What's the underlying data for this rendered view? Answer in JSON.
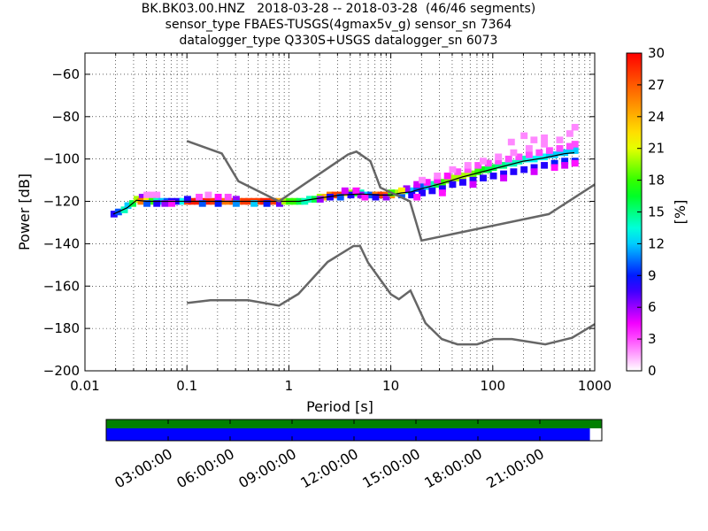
{
  "title": {
    "line1": "BK.BK03.00.HNZ   2018-03-28 -- 2018-03-28  (46/46 segments)",
    "line2": "sensor_type FBAES-TUSGS(4gmax5v_g) sensor_sn 7364",
    "line3": "datalogger_type Q330S+USGS datalogger_sn 6073"
  },
  "chart_data": {
    "type": "heatmap",
    "xlabel": "Period [s]",
    "ylabel": "Power [dB]",
    "xscale": "log",
    "xlim": [
      0.01,
      1000
    ],
    "ylim": [
      -200,
      -50
    ],
    "xticks": [
      "0.01",
      "0.1",
      "1",
      "10",
      "100",
      "1000"
    ],
    "yticks": [
      "−200",
      "−180",
      "−160",
      "−140",
      "−120",
      "−100",
      "−80",
      "−60"
    ],
    "grid": true,
    "colorbar": {
      "label": "[%]",
      "range": [
        0,
        30
      ],
      "ticks": [
        "0",
        "3",
        "6",
        "9",
        "12",
        "15",
        "18",
        "21",
        "24",
        "27",
        "30"
      ],
      "colormap": [
        "#ffffff",
        "#ff00ff",
        "#0000ff",
        "#00ffff",
        "#00ff00",
        "#ffff00",
        "#ff8000",
        "#ff0000"
      ]
    },
    "noise_models": [
      {
        "name": "NHNM",
        "points": [
          [
            0.1,
            -91.5
          ],
          [
            0.22,
            -97.4
          ],
          [
            0.32,
            -110.5
          ],
          [
            0.8,
            -120
          ],
          [
            3.8,
            -97.9
          ],
          [
            4.6,
            -96.5
          ],
          [
            6.3,
            -101
          ],
          [
            7.9,
            -113.5
          ],
          [
            15.4,
            -120
          ],
          [
            20,
            -138.5
          ],
          [
            354.8,
            -126
          ],
          [
            1000,
            -112
          ]
        ]
      },
      {
        "name": "NLNM",
        "points": [
          [
            0.1,
            -168
          ],
          [
            0.17,
            -166.7
          ],
          [
            0.4,
            -166.7
          ],
          [
            0.8,
            -169.2
          ],
          [
            1.24,
            -163.7
          ],
          [
            2.4,
            -148.6
          ],
          [
            4.3,
            -141.1
          ],
          [
            5,
            -141.1
          ],
          [
            6,
            -149
          ],
          [
            10,
            -163.8
          ],
          [
            12,
            -166.2
          ],
          [
            15.6,
            -162.1
          ],
          [
            21.9,
            -177.5
          ],
          [
            31.6,
            -185
          ],
          [
            45,
            -187.5
          ],
          [
            70,
            -187.5
          ],
          [
            101,
            -185
          ],
          [
            154,
            -185
          ],
          [
            328,
            -187.5
          ],
          [
            600,
            -184.4
          ],
          [
            1000,
            -178
          ]
        ]
      }
    ],
    "density_cells": [
      {
        "x": 0.019,
        "y": -126,
        "pct": 8
      },
      {
        "x": 0.021,
        "y": -125,
        "pct": 10
      },
      {
        "x": 0.024,
        "y": -124,
        "pct": 14
      },
      {
        "x": 0.026,
        "y": -122,
        "pct": 12
      },
      {
        "x": 0.029,
        "y": -121,
        "pct": 16
      },
      {
        "x": 0.032,
        "y": -119,
        "pct": 20
      },
      {
        "x": 0.036,
        "y": -118,
        "pct": 6
      },
      {
        "x": 0.04,
        "y": -117,
        "pct": 2
      },
      {
        "x": 0.045,
        "y": -117,
        "pct": 2
      },
      {
        "x": 0.05,
        "y": -117,
        "pct": 2
      },
      {
        "x": 0.035,
        "y": -120,
        "pct": 26
      },
      {
        "x": 0.04,
        "y": -120,
        "pct": 22
      },
      {
        "x": 0.045,
        "y": -120,
        "pct": 18
      },
      {
        "x": 0.05,
        "y": -120,
        "pct": 14
      },
      {
        "x": 0.056,
        "y": -120,
        "pct": 12
      },
      {
        "x": 0.063,
        "y": -120,
        "pct": 10
      },
      {
        "x": 0.07,
        "y": -120,
        "pct": 8
      },
      {
        "x": 0.08,
        "y": -120,
        "pct": 8
      },
      {
        "x": 0.04,
        "y": -121,
        "pct": 10
      },
      {
        "x": 0.05,
        "y": -121,
        "pct": 8
      },
      {
        "x": 0.06,
        "y": -121,
        "pct": 6
      },
      {
        "x": 0.07,
        "y": -121,
        "pct": 4
      },
      {
        "x": 0.09,
        "y": -120,
        "pct": 13
      },
      {
        "x": 0.1,
        "y": -120,
        "pct": 28
      },
      {
        "x": 0.11,
        "y": -120,
        "pct": 29
      },
      {
        "x": 0.125,
        "y": -120,
        "pct": 29
      },
      {
        "x": 0.14,
        "y": -120,
        "pct": 29
      },
      {
        "x": 0.16,
        "y": -120,
        "pct": 29
      },
      {
        "x": 0.18,
        "y": -120,
        "pct": 28
      },
      {
        "x": 0.2,
        "y": -120,
        "pct": 27
      },
      {
        "x": 0.22,
        "y": -120,
        "pct": 26
      },
      {
        "x": 0.25,
        "y": -120,
        "pct": 26
      },
      {
        "x": 0.28,
        "y": -120,
        "pct": 27
      },
      {
        "x": 0.32,
        "y": -120,
        "pct": 27
      },
      {
        "x": 0.36,
        "y": -120,
        "pct": 28
      },
      {
        "x": 0.4,
        "y": -120,
        "pct": 28
      },
      {
        "x": 0.45,
        "y": -120,
        "pct": 28
      },
      {
        "x": 0.5,
        "y": -120,
        "pct": 28
      },
      {
        "x": 0.56,
        "y": -120,
        "pct": 29
      },
      {
        "x": 0.63,
        "y": -120,
        "pct": 29
      },
      {
        "x": 0.7,
        "y": -120,
        "pct": 28
      },
      {
        "x": 0.8,
        "y": -120,
        "pct": 24
      },
      {
        "x": 0.1,
        "y": -119,
        "pct": 8
      },
      {
        "x": 0.13,
        "y": -118,
        "pct": 3
      },
      {
        "x": 0.16,
        "y": -117,
        "pct": 2
      },
      {
        "x": 0.2,
        "y": -118,
        "pct": 4
      },
      {
        "x": 0.25,
        "y": -118,
        "pct": 3
      },
      {
        "x": 0.3,
        "y": -119,
        "pct": 6
      },
      {
        "x": 0.14,
        "y": -121,
        "pct": 10
      },
      {
        "x": 0.2,
        "y": -121,
        "pct": 9
      },
      {
        "x": 0.3,
        "y": -121,
        "pct": 11
      },
      {
        "x": 0.45,
        "y": -121,
        "pct": 12
      },
      {
        "x": 0.6,
        "y": -121,
        "pct": 9
      },
      {
        "x": 0.8,
        "y": -121,
        "pct": 7
      },
      {
        "x": 0.9,
        "y": -120,
        "pct": 20
      },
      {
        "x": 1.0,
        "y": -120,
        "pct": 18
      },
      {
        "x": 1.12,
        "y": -120,
        "pct": 18
      },
      {
        "x": 1.26,
        "y": -120,
        "pct": 16
      },
      {
        "x": 1.41,
        "y": -120,
        "pct": 14
      },
      {
        "x": 1.58,
        "y": -119,
        "pct": 14
      },
      {
        "x": 1.78,
        "y": -119,
        "pct": 16
      },
      {
        "x": 2.0,
        "y": -118,
        "pct": 20
      },
      {
        "x": 2.24,
        "y": -118,
        "pct": 24
      },
      {
        "x": 2.5,
        "y": -117,
        "pct": 26
      },
      {
        "x": 2.8,
        "y": -117,
        "pct": 28
      },
      {
        "x": 3.16,
        "y": -117,
        "pct": 28
      },
      {
        "x": 3.55,
        "y": -116,
        "pct": 22
      },
      {
        "x": 4.0,
        "y": -116,
        "pct": 20
      },
      {
        "x": 4.47,
        "y": -116,
        "pct": 17
      },
      {
        "x": 5.0,
        "y": -116,
        "pct": 14
      },
      {
        "x": 5.62,
        "y": -117,
        "pct": 12
      },
      {
        "x": 6.3,
        "y": -117,
        "pct": 10
      },
      {
        "x": 2.0,
        "y": -119,
        "pct": 6
      },
      {
        "x": 2.5,
        "y": -118,
        "pct": 8
      },
      {
        "x": 3.16,
        "y": -118,
        "pct": 10
      },
      {
        "x": 4.0,
        "y": -117,
        "pct": 8
      },
      {
        "x": 5.0,
        "y": -117,
        "pct": 6
      },
      {
        "x": 3.5,
        "y": -115,
        "pct": 5
      },
      {
        "x": 4.5,
        "y": -115,
        "pct": 4
      },
      {
        "x": 5.5,
        "y": -118,
        "pct": 4
      },
      {
        "x": 7.0,
        "y": -117,
        "pct": 26
      },
      {
        "x": 7.9,
        "y": -117,
        "pct": 28
      },
      {
        "x": 8.9,
        "y": -117,
        "pct": 27
      },
      {
        "x": 10.0,
        "y": -117,
        "pct": 25
      },
      {
        "x": 7.0,
        "y": -118,
        "pct": 8
      },
      {
        "x": 8.9,
        "y": -118,
        "pct": 6
      },
      {
        "x": 11.2,
        "y": -116,
        "pct": 20
      },
      {
        "x": 12.6,
        "y": -116,
        "pct": 18
      },
      {
        "x": 14.1,
        "y": -115,
        "pct": 14
      },
      {
        "x": 15.8,
        "y": -115,
        "pct": 12
      },
      {
        "x": 17.8,
        "y": -114,
        "pct": 10
      },
      {
        "x": 20.0,
        "y": -113,
        "pct": 10
      },
      {
        "x": 22.4,
        "y": -113,
        "pct": 12
      },
      {
        "x": 25.1,
        "y": -112,
        "pct": 14
      },
      {
        "x": 28.2,
        "y": -112,
        "pct": 16
      },
      {
        "x": 31.6,
        "y": -111,
        "pct": 18
      },
      {
        "x": 35.5,
        "y": -110,
        "pct": 19
      },
      {
        "x": 39.8,
        "y": -109,
        "pct": 20
      },
      {
        "x": 44.7,
        "y": -109,
        "pct": 20
      },
      {
        "x": 50.1,
        "y": -108,
        "pct": 20
      },
      {
        "x": 56.2,
        "y": -107,
        "pct": 20
      },
      {
        "x": 63.1,
        "y": -107,
        "pct": 19
      },
      {
        "x": 70.8,
        "y": -106,
        "pct": 18
      },
      {
        "x": 79.4,
        "y": -105,
        "pct": 17
      },
      {
        "x": 89.1,
        "y": -105,
        "pct": 16
      },
      {
        "x": 100,
        "y": -104,
        "pct": 16
      },
      {
        "x": 112,
        "y": -103,
        "pct": 15
      },
      {
        "x": 126,
        "y": -103,
        "pct": 15
      },
      {
        "x": 141,
        "y": -102,
        "pct": 14
      },
      {
        "x": 158,
        "y": -102,
        "pct": 14
      },
      {
        "x": 178,
        "y": -101,
        "pct": 14
      },
      {
        "x": 200,
        "y": -100,
        "pct": 14
      },
      {
        "x": 224,
        "y": -100,
        "pct": 13
      },
      {
        "x": 251,
        "y": -100,
        "pct": 13
      },
      {
        "x": 282,
        "y": -99,
        "pct": 13
      },
      {
        "x": 316,
        "y": -99,
        "pct": 13
      },
      {
        "x": 355,
        "y": -98,
        "pct": 12
      },
      {
        "x": 398,
        "y": -98,
        "pct": 12
      },
      {
        "x": 447,
        "y": -97,
        "pct": 12
      },
      {
        "x": 501,
        "y": -97,
        "pct": 12
      },
      {
        "x": 562,
        "y": -96,
        "pct": 12
      },
      {
        "x": 631,
        "y": -96,
        "pct": 12
      },
      {
        "x": 12.6,
        "y": -117,
        "pct": 10
      },
      {
        "x": 15.8,
        "y": -117,
        "pct": 8
      },
      {
        "x": 20.0,
        "y": -116,
        "pct": 8
      },
      {
        "x": 25.1,
        "y": -115,
        "pct": 8
      },
      {
        "x": 31.6,
        "y": -114,
        "pct": 8
      },
      {
        "x": 39.8,
        "y": -112,
        "pct": 8
      },
      {
        "x": 50.1,
        "y": -111,
        "pct": 8
      },
      {
        "x": 63.1,
        "y": -110,
        "pct": 8
      },
      {
        "x": 79.4,
        "y": -109,
        "pct": 8
      },
      {
        "x": 100,
        "y": -108,
        "pct": 8
      },
      {
        "x": 126,
        "y": -107,
        "pct": 8
      },
      {
        "x": 158,
        "y": -106,
        "pct": 8
      },
      {
        "x": 200,
        "y": -105,
        "pct": 8
      },
      {
        "x": 251,
        "y": -104,
        "pct": 8
      },
      {
        "x": 316,
        "y": -103,
        "pct": 8
      },
      {
        "x": 398,
        "y": -102,
        "pct": 9
      },
      {
        "x": 501,
        "y": -101,
        "pct": 9
      },
      {
        "x": 631,
        "y": -101,
        "pct": 9
      },
      {
        "x": 14.1,
        "y": -114,
        "pct": 6
      },
      {
        "x": 17.8,
        "y": -112,
        "pct": 5
      },
      {
        "x": 22.4,
        "y": -111,
        "pct": 4
      },
      {
        "x": 28.2,
        "y": -110,
        "pct": 4
      },
      {
        "x": 35.5,
        "y": -108,
        "pct": 4
      },
      {
        "x": 44.7,
        "y": -106,
        "pct": 3
      },
      {
        "x": 56.2,
        "y": -105,
        "pct": 3
      },
      {
        "x": 70.8,
        "y": -103,
        "pct": 3
      },
      {
        "x": 89.1,
        "y": -102,
        "pct": 3
      },
      {
        "x": 112,
        "y": -101,
        "pct": 3
      },
      {
        "x": 141,
        "y": -100,
        "pct": 3
      },
      {
        "x": 178,
        "y": -99,
        "pct": 3
      },
      {
        "x": 224,
        "y": -98,
        "pct": 3
      },
      {
        "x": 282,
        "y": -97,
        "pct": 3
      },
      {
        "x": 355,
        "y": -96,
        "pct": 3
      },
      {
        "x": 447,
        "y": -95,
        "pct": 3
      },
      {
        "x": 562,
        "y": -94,
        "pct": 3
      },
      {
        "x": 631,
        "y": -93,
        "pct": 3
      },
      {
        "x": 20.0,
        "y": -110,
        "pct": 2
      },
      {
        "x": 28.2,
        "y": -108,
        "pct": 2
      },
      {
        "x": 39.8,
        "y": -105,
        "pct": 2
      },
      {
        "x": 56.2,
        "y": -103,
        "pct": 2
      },
      {
        "x": 79.4,
        "y": -101,
        "pct": 2
      },
      {
        "x": 112,
        "y": -99,
        "pct": 2
      },
      {
        "x": 158,
        "y": -97,
        "pct": 2
      },
      {
        "x": 224,
        "y": -95,
        "pct": 2
      },
      {
        "x": 316,
        "y": -93,
        "pct": 2
      },
      {
        "x": 447,
        "y": -91,
        "pct": 2
      },
      {
        "x": 562,
        "y": -88,
        "pct": 2
      },
      {
        "x": 631,
        "y": -85,
        "pct": 2
      },
      {
        "x": 200,
        "y": -89,
        "pct": 2
      },
      {
        "x": 316,
        "y": -90,
        "pct": 2
      },
      {
        "x": 250,
        "y": -91,
        "pct": 2
      },
      {
        "x": 150,
        "y": -92,
        "pct": 2
      },
      {
        "x": 17.8,
        "y": -118,
        "pct": 4
      },
      {
        "x": 31.6,
        "y": -116,
        "pct": 4
      },
      {
        "x": 63.1,
        "y": -112,
        "pct": 5
      },
      {
        "x": 126,
        "y": -109,
        "pct": 5
      },
      {
        "x": 251,
        "y": -106,
        "pct": 5
      },
      {
        "x": 501,
        "y": -103,
        "pct": 5
      },
      {
        "x": 631,
        "y": -102,
        "pct": 4
      },
      {
        "x": 398,
        "y": -104,
        "pct": 4
      },
      {
        "x": 12.6,
        "y": -115,
        "pct": 22
      },
      {
        "x": 10.0,
        "y": -116,
        "pct": 18
      }
    ],
    "mean_curve": [
      [
        0.019,
        -126
      ],
      [
        0.026,
        -123
      ],
      [
        0.032,
        -119.5
      ],
      [
        0.04,
        -120
      ],
      [
        0.1,
        -120
      ],
      [
        0.5,
        -120
      ],
      [
        0.8,
        -120
      ],
      [
        1.26,
        -120
      ],
      [
        2.0,
        -118.5
      ],
      [
        3.16,
        -117
      ],
      [
        5.0,
        -116.5
      ],
      [
        7.9,
        -117
      ],
      [
        10,
        -117
      ],
      [
        12.6,
        -116
      ],
      [
        15.8,
        -115.5
      ],
      [
        20,
        -114
      ],
      [
        31.6,
        -111.5
      ],
      [
        50.1,
        -108.5
      ],
      [
        79.4,
        -106
      ],
      [
        126,
        -103.5
      ],
      [
        200,
        -101
      ],
      [
        316,
        -99.5
      ],
      [
        501,
        -97.5
      ],
      [
        631,
        -97
      ]
    ]
  },
  "timeline": {
    "ticks": [
      "03:00:00",
      "06:00:00",
      "09:00:00",
      "12:00:00",
      "15:00:00",
      "18:00:00",
      "21:00:00"
    ],
    "hour_positions": [
      3,
      6,
      9,
      12,
      15,
      18,
      21
    ],
    "data_range_hours": [
      0,
      24
    ],
    "segments_coverage_fraction": 1.0,
    "used_coverage_fraction": 0.976,
    "colors": {
      "available": "#008000",
      "used": "#0000ff"
    }
  }
}
